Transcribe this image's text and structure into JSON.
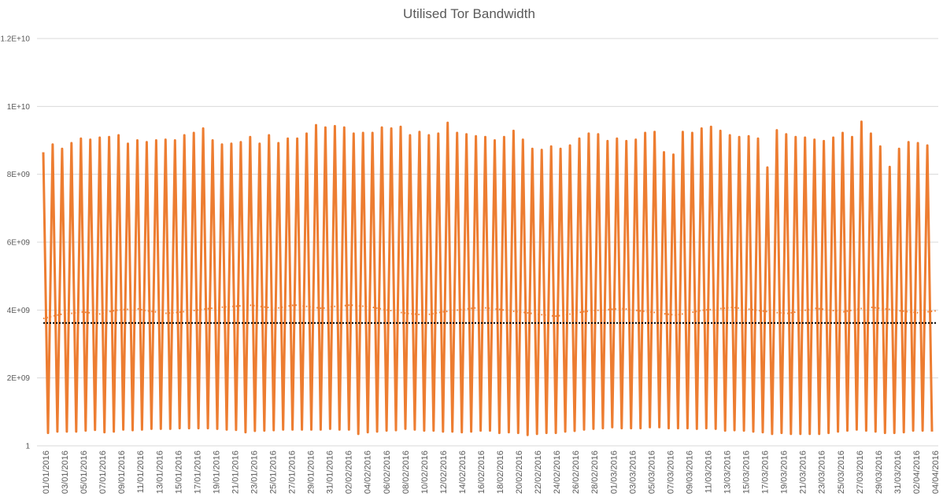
{
  "chart_data": {
    "type": "line",
    "title": "Utilised Tor Bandwidth",
    "xlabel": "",
    "ylabel": "",
    "ylim": [
      1,
      12000000000
    ],
    "grid": true,
    "legend": "none",
    "y_tick_labels": [
      "1",
      "2E+09",
      "4E+09",
      "6E+09",
      "8E+09",
      "1E+10",
      "1.2E+10"
    ],
    "y_tick_values": [
      1,
      2000000000,
      4000000000,
      6000000000,
      8000000000,
      10000000000,
      12000000000
    ],
    "x_tick_labels": [
      "01/01/2016",
      "03/01/2016",
      "05/01/2016",
      "07/01/2016",
      "09/01/2016",
      "11/01/2016",
      "13/01/2016",
      "15/01/2016",
      "17/01/2016",
      "19/01/2016",
      "21/01/2016",
      "23/01/2016",
      "25/01/2016",
      "27/01/2016",
      "29/01/2016",
      "31/01/2016",
      "02/02/2016",
      "04/02/2016",
      "06/02/2016",
      "08/02/2016",
      "10/02/2016",
      "12/02/2016",
      "14/02/2016",
      "16/02/2016",
      "18/02/2016",
      "20/02/2016",
      "22/02/2016",
      "24/02/2016",
      "26/02/2016",
      "28/02/2016",
      "01/03/2016",
      "03/03/2016",
      "05/03/2016",
      "07/03/2016",
      "09/03/2016",
      "11/03/2016",
      "13/03/2016",
      "15/03/2016",
      "17/03/2016",
      "19/03/2016",
      "21/03/2016",
      "23/03/2016",
      "25/03/2016",
      "27/03/2016",
      "29/03/2016",
      "31/03/2016",
      "02/04/2016",
      "04/04/2016"
    ],
    "colors": {
      "series": "#ed7d31",
      "average": "#000000",
      "trend": "#ed7d31",
      "grid": "#d9d9d9",
      "text": "#595959"
    },
    "series": [
      {
        "style": "solid",
        "peaks_e9": [
          8.65,
          8.88,
          8.75,
          8.92,
          9.05,
          9.02,
          9.08,
          9.1,
          9.15,
          8.9,
          9.0,
          8.95,
          9.0,
          9.02,
          9.0,
          9.15,
          9.22,
          9.35,
          9.0,
          8.88,
          8.9,
          8.95,
          9.1,
          8.9,
          9.15,
          8.92,
          9.05,
          9.05,
          9.2,
          9.45,
          9.38,
          9.42,
          9.38,
          9.2,
          9.22,
          9.22,
          9.38,
          9.35,
          9.4,
          9.15,
          9.25,
          9.15,
          9.2,
          9.52,
          9.22,
          9.18,
          9.12,
          9.1,
          9.0,
          9.1,
          9.28,
          9.02,
          8.75,
          8.72,
          8.82,
          8.75,
          8.85,
          9.05,
          9.2,
          9.18,
          8.98,
          9.05,
          8.98,
          9.02,
          9.22,
          9.25,
          8.65,
          8.58,
          9.25,
          9.22,
          9.35,
          9.4,
          9.28,
          9.15,
          9.1,
          9.12,
          9.05,
          8.2,
          9.3,
          9.18,
          9.1,
          9.08,
          9.02,
          8.98,
          9.08,
          9.22,
          9.1,
          9.55,
          9.2,
          8.82,
          8.22,
          8.75,
          8.95,
          8.92,
          8.85
        ],
        "troughs_e9": [
          0.38,
          0.42,
          0.42,
          0.42,
          0.45,
          0.47,
          0.4,
          0.42,
          0.48,
          0.46,
          0.48,
          0.5,
          0.5,
          0.5,
          0.52,
          0.52,
          0.52,
          0.52,
          0.5,
          0.48,
          0.47,
          0.4,
          0.44,
          0.45,
          0.46,
          0.48,
          0.48,
          0.48,
          0.48,
          0.48,
          0.5,
          0.48,
          0.48,
          0.35,
          0.4,
          0.42,
          0.45,
          0.46,
          0.5,
          0.48,
          0.45,
          0.45,
          0.42,
          0.42,
          0.4,
          0.42,
          0.45,
          0.45,
          0.38,
          0.4,
          0.38,
          0.32,
          0.35,
          0.38,
          0.38,
          0.42,
          0.44,
          0.48,
          0.5,
          0.52,
          0.55,
          0.52,
          0.52,
          0.52,
          0.55,
          0.55,
          0.52,
          0.52,
          0.52,
          0.5,
          0.52,
          0.5,
          0.45,
          0.46,
          0.45,
          0.42,
          0.4,
          0.35,
          0.38,
          0.35,
          0.35,
          0.35,
          0.35,
          0.38,
          0.42,
          0.45,
          0.48,
          0.45,
          0.42,
          0.38,
          0.38,
          0.4,
          0.45,
          0.45,
          0.42
        ]
      },
      {
        "style": "dotted-average",
        "value": 3620000000
      },
      {
        "style": "dotted-moving-average",
        "values_e9": [
          3.75,
          3.82,
          3.88,
          3.9,
          3.95,
          3.92,
          3.88,
          3.95,
          4.0,
          4.02,
          4.05,
          3.98,
          3.95,
          3.9,
          3.92,
          3.95,
          3.98,
          4.02,
          4.05,
          4.08,
          4.1,
          4.12,
          4.15,
          4.12,
          4.08,
          4.05,
          4.1,
          4.15,
          4.12,
          4.08,
          4.05,
          4.1,
          4.12,
          4.15,
          4.12,
          4.1,
          4.05,
          4.0,
          3.95,
          3.9,
          3.88,
          3.85,
          3.9,
          3.95,
          3.98,
          4.02,
          4.05,
          4.08,
          4.05,
          4.02,
          3.98,
          3.95,
          3.92,
          3.88,
          3.85,
          3.82,
          3.85,
          3.9,
          3.95,
          3.98,
          4.0,
          4.02,
          4.05,
          4.02,
          3.98,
          3.95,
          3.92,
          3.88,
          3.85,
          3.9,
          3.95,
          4.0,
          4.02,
          4.05,
          4.08,
          4.05,
          4.02,
          3.98,
          3.95,
          3.92,
          3.9,
          3.95,
          4.0,
          4.05,
          4.02,
          3.98,
          3.95,
          4.0,
          4.05,
          4.08,
          4.05,
          4.02,
          3.98,
          3.95,
          3.92,
          3.95,
          3.98
        ]
      }
    ]
  }
}
